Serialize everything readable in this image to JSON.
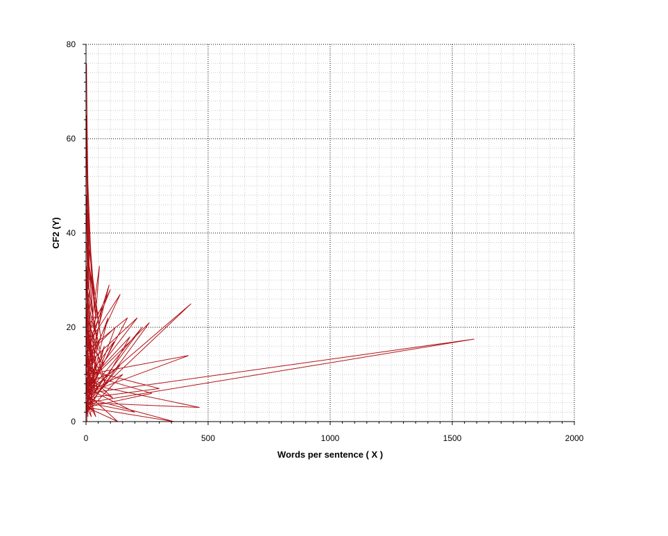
{
  "chart_data": {
    "type": "line",
    "xlabel": "Words per sentence ( X )",
    "ylabel": "CF2 (Y)",
    "xlim": [
      0,
      2000
    ],
    "ylim": [
      0,
      80
    ],
    "x_ticks": [
      "0",
      "500",
      "1000",
      "1500",
      "2000"
    ],
    "y_ticks": [
      "0",
      "20",
      "40",
      "60",
      "80"
    ],
    "grid": true,
    "legend": "none",
    "colors": {
      "series": "#b01116",
      "major_grid": "#000000",
      "minor_grid": "#c8c8c8",
      "axis": "#000000"
    },
    "series": [
      {
        "x": [
          2,
          5,
          3,
          8,
          1,
          12,
          4,
          20,
          2,
          6,
          15,
          3,
          30,
          5,
          1,
          10,
          40,
          2,
          7,
          25,
          3,
          60,
          4,
          9,
          1,
          18,
          50,
          2,
          6,
          35,
          3,
          8,
          2,
          14,
          70,
          5,
          1,
          22,
          3,
          11,
          45,
          4,
          2,
          16,
          80,
          6,
          1,
          28,
          3,
          100,
          5,
          9,
          2,
          20,
          55,
          4,
          12,
          1,
          38,
          3,
          140,
          7,
          2,
          26,
          4,
          95,
          3,
          18,
          1,
          65,
          6,
          170,
          2,
          30,
          4,
          10,
          1,
          48,
          3,
          120,
          5,
          8,
          2,
          210,
          4,
          15,
          1,
          33,
          6,
          260,
          3,
          12,
          2,
          75,
          5,
          180,
          1,
          20,
          4,
          90,
          2,
          430,
          3,
          140,
          5,
          42,
          1,
          115,
          4,
          300,
          2,
          24,
          6,
          85,
          3,
          1590,
          5,
          230,
          2,
          60,
          4,
          420,
          1,
          150,
          3,
          36,
          5,
          465,
          2,
          110,
          4,
          270,
          1,
          70,
          3,
          200,
          5,
          40,
          2,
          360,
          4,
          130,
          1,
          22,
          3,
          10,
          5,
          2,
          8,
          1,
          4
        ],
        "y": [
          76,
          60,
          68,
          50,
          65,
          42,
          55,
          35,
          58,
          46,
          30,
          52,
          26,
          44,
          62,
          34,
          22,
          48,
          38,
          24,
          40,
          18,
          36,
          28,
          45,
          20,
          15,
          32,
          26,
          19,
          38,
          24,
          30,
          17,
          12,
          28,
          33,
          14,
          22,
          18,
          10,
          26,
          20,
          15,
          8,
          22,
          30,
          12,
          18,
          28,
          16,
          20,
          25,
          10,
          33,
          14,
          8,
          22,
          6,
          16,
          27,
          12,
          18,
          4,
          14,
          29,
          10,
          8,
          20,
          24,
          6,
          22,
          15,
          2,
          12,
          26,
          10,
          7,
          14,
          20,
          4,
          16,
          12,
          22,
          8,
          5,
          18,
          10,
          3,
          21,
          8,
          14,
          6,
          16,
          2,
          18,
          8,
          12,
          10,
          22,
          4,
          25,
          6,
          12,
          3,
          14,
          9,
          17,
          5,
          7,
          11,
          2,
          8,
          10,
          4,
          17.5,
          6,
          20,
          4,
          8,
          10,
          14,
          6,
          10,
          2,
          12,
          4,
          3,
          8,
          5,
          10,
          6,
          3,
          9,
          4,
          2,
          7,
          1,
          5,
          0,
          3,
          0,
          6,
          1,
          3,
          14,
          2,
          9,
          1,
          4,
          0
        ]
      }
    ]
  }
}
